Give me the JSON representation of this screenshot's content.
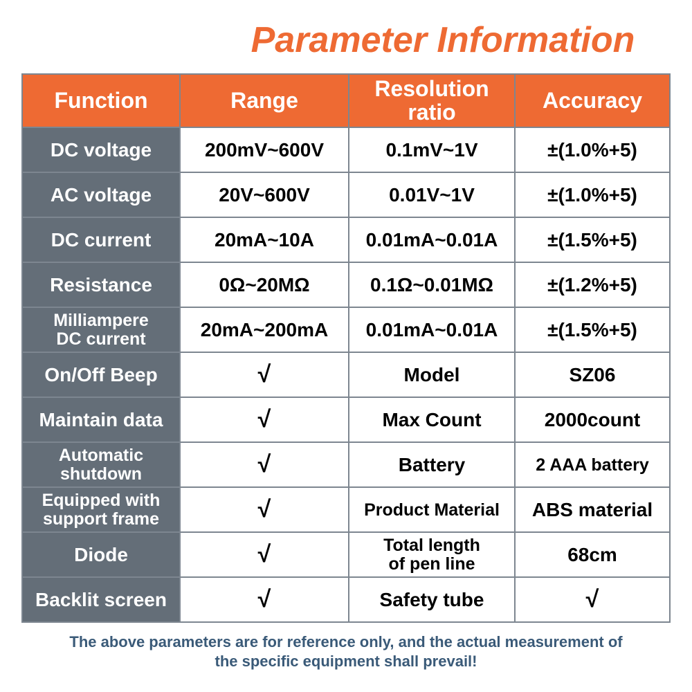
{
  "colors": {
    "title": "#ee6a33",
    "header_bg": "#ee6a33",
    "label_bg": "#646e78",
    "border": "#7d8690",
    "footnote": "#3a5a78"
  },
  "title": "Parameter Information",
  "headers": [
    "Function",
    "Range",
    "Resolution ratio",
    "Accuracy"
  ],
  "rows": [
    {
      "label": "DC voltage",
      "cells": [
        "200mV~600V",
        "0.1mV~1V",
        "±(1.0%+5)"
      ]
    },
    {
      "label": "AC voltage",
      "cells": [
        "20V~600V",
        "0.01V~1V",
        "±(1.0%+5)"
      ]
    },
    {
      "label": "DC current",
      "cells": [
        "20mA~10A",
        "0.01mA~0.01A",
        "±(1.5%+5)"
      ]
    },
    {
      "label": "Resistance",
      "cells": [
        "0Ω~20MΩ",
        "0.1Ω~0.01MΩ",
        "±(1.2%+5)"
      ]
    },
    {
      "label": "Milliampere\nDC current",
      "small": true,
      "cells": [
        "20mA~200mA",
        "0.01mA~0.01A",
        "±(1.5%+5)"
      ]
    },
    {
      "label": "On/Off Beep",
      "cells": [
        "√",
        "Model",
        "SZ06"
      ],
      "check_cols": [
        0
      ]
    },
    {
      "label": "Maintain data",
      "cells": [
        "√",
        "Max Count",
        "2000count"
      ],
      "check_cols": [
        0
      ]
    },
    {
      "label": "Automatic\nshutdown",
      "small": true,
      "cells": [
        "√",
        "Battery",
        "2 AAA battery"
      ],
      "check_cols": [
        0
      ],
      "small_cells": [
        2
      ]
    },
    {
      "label": "Equipped with\nsupport frame",
      "small": true,
      "cells": [
        "√",
        "Product Material",
        "ABS material"
      ],
      "check_cols": [
        0
      ],
      "small_cells": [
        1
      ]
    },
    {
      "label": "Diode",
      "cells": [
        "√",
        "Total length\nof pen line",
        "68cm"
      ],
      "check_cols": [
        0
      ],
      "small_cells": [
        1
      ]
    },
    {
      "label": "Backlit screen",
      "cells": [
        "√",
        "Safety tube",
        "√"
      ],
      "check_cols": [
        0,
        2
      ]
    }
  ],
  "footnote": "The above parameters are for reference only, and the actual measurement of the specific equipment shall prevail!"
}
